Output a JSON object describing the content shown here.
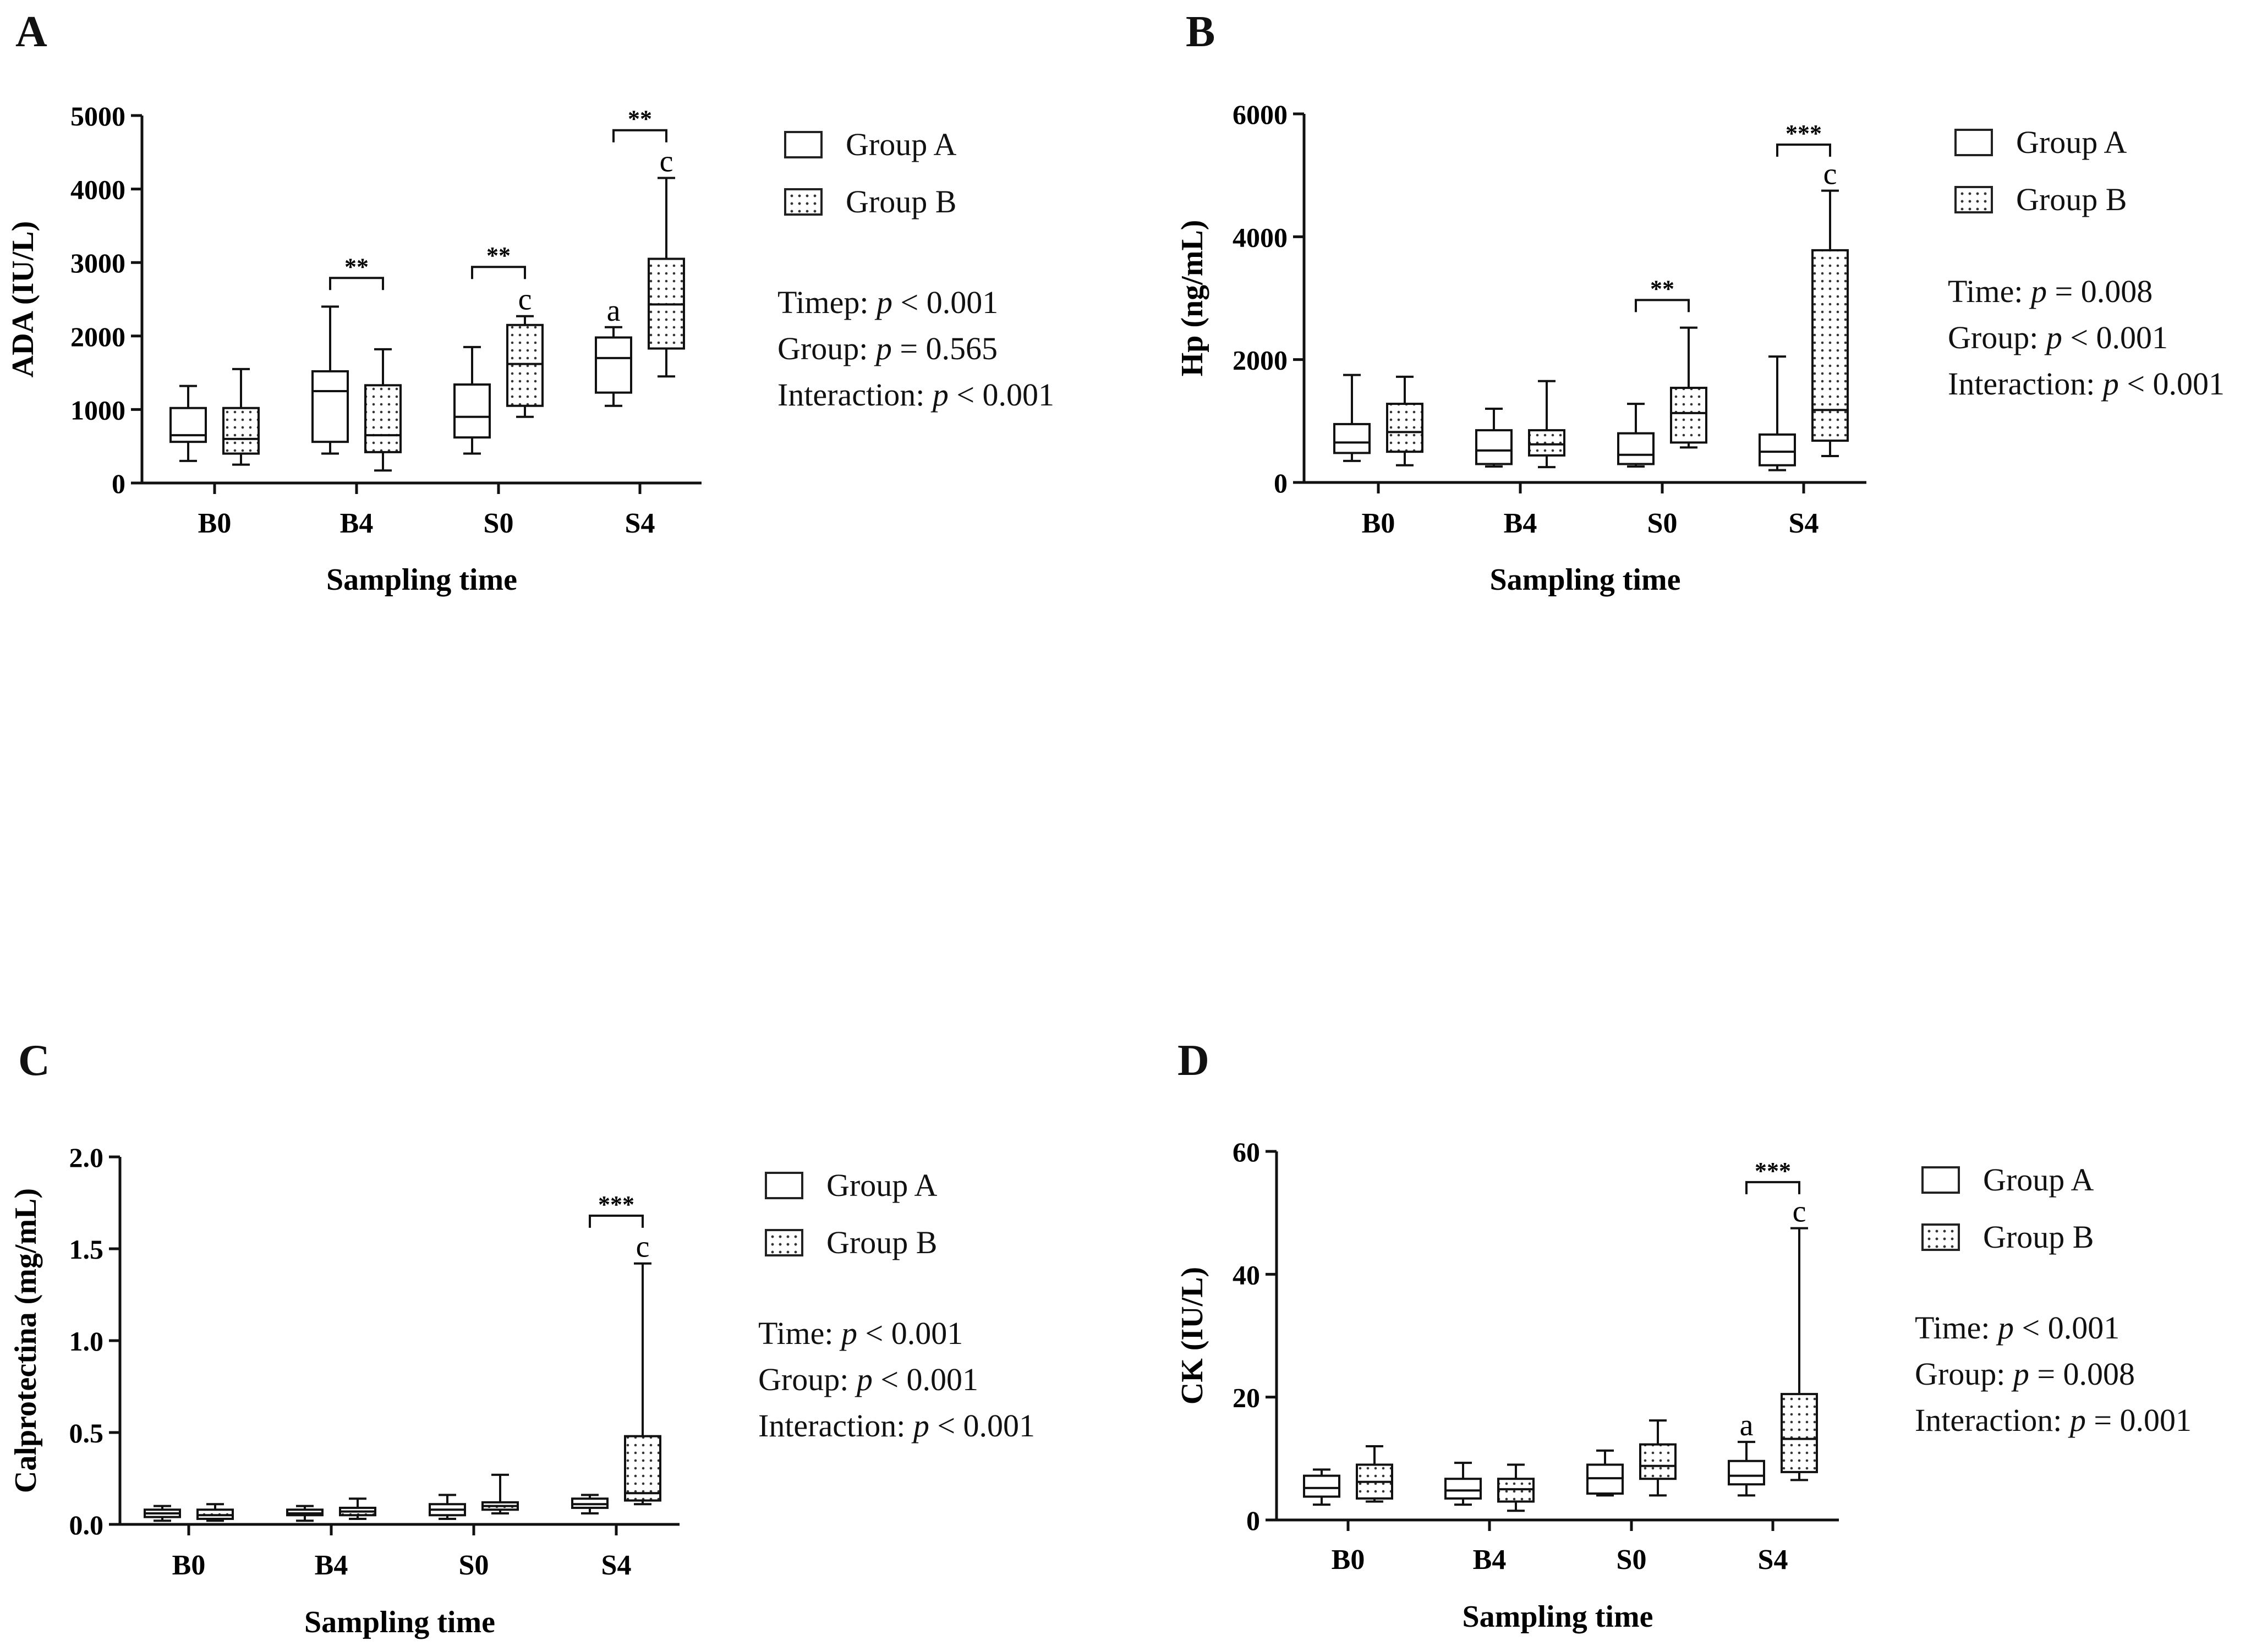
{
  "panels": [
    {
      "label": "A",
      "legend": [
        "Group A",
        "Group B"
      ],
      "stats": [
        {
          "pre": "Timep: ",
          "p": "p",
          "post": " < 0.001"
        },
        {
          "pre": "Group: ",
          "p": "p",
          "post": " = 0.565"
        },
        {
          "pre": "Interaction: ",
          "p": "p",
          "post": " < 0.001"
        }
      ]
    },
    {
      "label": "B",
      "legend": [
        "Group A",
        "Group B"
      ],
      "stats": [
        {
          "pre": "Time: ",
          "p": "p",
          "post": " = 0.008"
        },
        {
          "pre": "Group: ",
          "p": "p",
          "post": " < 0.001"
        },
        {
          "pre": "Interaction: ",
          "p": "p",
          "post": " < 0.001"
        }
      ]
    },
    {
      "label": "C",
      "legend": [
        "Group A",
        "Group B"
      ],
      "stats": [
        {
          "pre": "Time: ",
          "p": "p",
          "post": " < 0.001"
        },
        {
          "pre": "Group: ",
          "p": "p",
          "post": " < 0.001"
        },
        {
          "pre": "Interaction: ",
          "p": "p",
          "post": " < 0.001"
        }
      ]
    },
    {
      "label": "D",
      "legend": [
        "Group A",
        "Group B"
      ],
      "stats": [
        {
          "pre": "Time: ",
          "p": "p",
          "post": " < 0.001"
        },
        {
          "pre": "Group: ",
          "p": "p",
          "post": " = 0.008"
        },
        {
          "pre": "Interaction: ",
          "p": "p",
          "post": " = 0.001"
        }
      ]
    }
  ],
  "chart_data": [
    {
      "type": "box",
      "panel": "A",
      "ylabel": "ADA (IU/L)",
      "xlabel": "Sampling time",
      "categories": [
        "B0",
        "B4",
        "S0",
        "S4"
      ],
      "ylim": [
        0,
        5000
      ],
      "yticks": [
        0,
        1000,
        2000,
        3000,
        4000,
        5000
      ],
      "ytick_labels": [
        "0",
        "1000",
        "2000",
        "3000",
        "4000",
        "5000"
      ],
      "series": [
        {
          "name": "Group A",
          "pattern": "plain",
          "boxes": [
            {
              "min": 300,
              "q1": 560,
              "median": 650,
              "q3": 1020,
              "max": 1320
            },
            {
              "min": 400,
              "q1": 560,
              "median": 1250,
              "q3": 1520,
              "max": 2400
            },
            {
              "min": 400,
              "q1": 620,
              "median": 900,
              "q3": 1340,
              "max": 1850
            },
            {
              "min": 1050,
              "q1": 1230,
              "median": 1700,
              "q3": 1980,
              "max": 2120
            }
          ]
        },
        {
          "name": "Group B",
          "pattern": "dotted",
          "boxes": [
            {
              "min": 250,
              "q1": 400,
              "median": 600,
              "q3": 1020,
              "max": 1550
            },
            {
              "min": 170,
              "q1": 420,
              "median": 650,
              "q3": 1330,
              "max": 1820
            },
            {
              "min": 900,
              "q1": 1050,
              "median": 1620,
              "q3": 2150,
              "max": 2270
            },
            {
              "min": 1450,
              "q1": 1830,
              "median": 2430,
              "q3": 3050,
              "max": 4150
            }
          ]
        }
      ],
      "letters": [
        {
          "category": "S0",
          "series": "Group B",
          "text": "c"
        },
        {
          "category": "S4",
          "series": "Group A",
          "text": "a"
        },
        {
          "category": "S4",
          "series": "Group B",
          "text": "c"
        }
      ],
      "brackets": [
        {
          "category": "B4",
          "text": "**",
          "level": 2790
        },
        {
          "category": "S0",
          "text": "**",
          "level": 2940
        },
        {
          "category": "S4",
          "text": "**",
          "level": 4800
        }
      ]
    },
    {
      "type": "box",
      "panel": "B",
      "ylabel": "Hp (ng/mL)",
      "xlabel": "Sampling time",
      "categories": [
        "B0",
        "B4",
        "S0",
        "S4"
      ],
      "ylim": [
        0,
        6000
      ],
      "yticks": [
        0,
        2000,
        4000,
        6000
      ],
      "ytick_labels": [
        "0",
        "2000",
        "4000",
        "6000"
      ],
      "series": [
        {
          "name": "Group A",
          "pattern": "plain",
          "boxes": [
            {
              "min": 350,
              "q1": 480,
              "median": 650,
              "q3": 950,
              "max": 1750
            },
            {
              "min": 260,
              "q1": 300,
              "median": 520,
              "q3": 850,
              "max": 1200
            },
            {
              "min": 260,
              "q1": 300,
              "median": 450,
              "q3": 800,
              "max": 1280
            },
            {
              "min": 200,
              "q1": 280,
              "median": 500,
              "q3": 780,
              "max": 2050
            }
          ]
        },
        {
          "name": "Group B",
          "pattern": "dotted",
          "boxes": [
            {
              "min": 280,
              "q1": 500,
              "median": 820,
              "q3": 1280,
              "max": 1720
            },
            {
              "min": 250,
              "q1": 440,
              "median": 620,
              "q3": 850,
              "max": 1650
            },
            {
              "min": 570,
              "q1": 650,
              "median": 1130,
              "q3": 1540,
              "max": 2520
            },
            {
              "min": 430,
              "q1": 680,
              "median": 1180,
              "q3": 3780,
              "max": 4750
            }
          ]
        }
      ],
      "letters": [
        {
          "category": "S4",
          "series": "Group B",
          "text": "c"
        }
      ],
      "brackets": [
        {
          "category": "S0",
          "text": "**",
          "level": 2970
        },
        {
          "category": "S4",
          "text": "***",
          "level": 5500
        }
      ]
    },
    {
      "type": "box",
      "panel": "C",
      "ylabel": "Calprotectina (mg/mL)",
      "xlabel": "Sampling time",
      "categories": [
        "B0",
        "B4",
        "S0",
        "S4"
      ],
      "ylim": [
        0,
        2.0
      ],
      "yticks": [
        0,
        0.5,
        1.0,
        1.5,
        2.0
      ],
      "ytick_labels": [
        "0.0",
        "0.5",
        "1.0",
        "1.5",
        "2.0"
      ],
      "series": [
        {
          "name": "Group A",
          "pattern": "plain",
          "boxes": [
            {
              "min": 0.02,
              "q1": 0.04,
              "median": 0.06,
              "q3": 0.08,
              "max": 0.1
            },
            {
              "min": 0.02,
              "q1": 0.05,
              "median": 0.06,
              "q3": 0.08,
              "max": 0.1
            },
            {
              "min": 0.03,
              "q1": 0.05,
              "median": 0.08,
              "q3": 0.11,
              "max": 0.16
            },
            {
              "min": 0.06,
              "q1": 0.09,
              "median": 0.11,
              "q3": 0.14,
              "max": 0.16
            }
          ]
        },
        {
          "name": "Group B",
          "pattern": "dotted",
          "boxes": [
            {
              "min": 0.02,
              "q1": 0.03,
              "median": 0.05,
              "q3": 0.08,
              "max": 0.11
            },
            {
              "min": 0.03,
              "q1": 0.05,
              "median": 0.07,
              "q3": 0.09,
              "max": 0.14
            },
            {
              "min": 0.06,
              "q1": 0.08,
              "median": 0.1,
              "q3": 0.12,
              "max": 0.27
            },
            {
              "min": 0.11,
              "q1": 0.13,
              "median": 0.17,
              "q3": 0.48,
              "max": 1.42
            }
          ]
        }
      ],
      "letters": [
        {
          "category": "S4",
          "series": "Group B",
          "text": "c"
        }
      ],
      "brackets": [
        {
          "category": "S4",
          "text": "***",
          "level": 1.68
        }
      ]
    },
    {
      "type": "box",
      "panel": "D",
      "ylabel": "CK (IU/L)",
      "xlabel": "Sampling time",
      "categories": [
        "B0",
        "B4",
        "S0",
        "S4"
      ],
      "ylim": [
        0,
        60
      ],
      "yticks": [
        0,
        20,
        40,
        60
      ],
      "ytick_labels": [
        "0",
        "20",
        "40",
        "60"
      ],
      "series": [
        {
          "name": "Group A",
          "pattern": "plain",
          "boxes": [
            {
              "min": 2.5,
              "q1": 3.8,
              "median": 5.2,
              "q3": 7.2,
              "max": 8.2
            },
            {
              "min": 2.5,
              "q1": 3.5,
              "median": 4.8,
              "q3": 6.7,
              "max": 9.3
            },
            {
              "min": 4.0,
              "q1": 4.3,
              "median": 6.8,
              "q3": 9.0,
              "max": 11.3
            },
            {
              "min": 4.0,
              "q1": 5.8,
              "median": 7.2,
              "q3": 9.6,
              "max": 12.7
            }
          ]
        },
        {
          "name": "Group B",
          "pattern": "dotted",
          "boxes": [
            {
              "min": 3.0,
              "q1": 3.5,
              "median": 6.2,
              "q3": 9.0,
              "max": 12.0
            },
            {
              "min": 1.5,
              "q1": 3.0,
              "median": 5.0,
              "q3": 6.7,
              "max": 9.0
            },
            {
              "min": 4.0,
              "q1": 6.7,
              "median": 8.8,
              "q3": 12.3,
              "max": 16.2
            },
            {
              "min": 6.5,
              "q1": 7.8,
              "median": 13.2,
              "q3": 20.5,
              "max": 47.5
            }
          ]
        }
      ],
      "letters": [
        {
          "category": "S4",
          "series": "Group A",
          "text": "a"
        },
        {
          "category": "S4",
          "series": "Group B",
          "text": "c"
        }
      ],
      "brackets": [
        {
          "category": "S4",
          "text": "***",
          "level": 55
        }
      ]
    }
  ]
}
